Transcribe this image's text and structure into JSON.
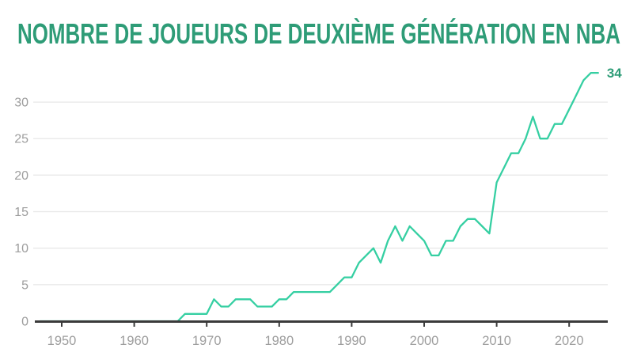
{
  "title": "NOMBRE DE JOUEURS DE DEUXIÈME GÉNÉRATION EN NBA",
  "palette": {
    "title_color": "#2e9c77",
    "line_color": "#35cfa2",
    "end_label_color": "#2e9c77",
    "axis_text_color": "#9d9d9d",
    "grid_color": "#e9e9e9",
    "axis_line_color": "#3a3a3a",
    "background": "#ffffff"
  },
  "chart_data": {
    "type": "line",
    "title": "NOMBRE DE JOUEURS DE DEUXIÈME GÉNÉRATION EN NBA",
    "xlabel": "",
    "ylabel": "",
    "legend": "none",
    "grid": "horizontal-only",
    "xlim": [
      1946,
      2026
    ],
    "ylim": [
      0,
      35
    ],
    "x_ticks": [
      1950,
      1960,
      1970,
      1980,
      1990,
      2000,
      2010,
      2020
    ],
    "y_ticks": [
      0,
      5,
      10,
      15,
      20,
      25,
      30
    ],
    "end_label": "34",
    "x": [
      1947,
      1948,
      1949,
      1950,
      1951,
      1952,
      1953,
      1954,
      1955,
      1956,
      1957,
      1958,
      1959,
      1960,
      1961,
      1962,
      1963,
      1964,
      1965,
      1966,
      1967,
      1968,
      1969,
      1970,
      1971,
      1972,
      1973,
      1974,
      1975,
      1976,
      1977,
      1978,
      1979,
      1980,
      1981,
      1982,
      1983,
      1984,
      1985,
      1986,
      1987,
      1988,
      1989,
      1990,
      1991,
      1992,
      1993,
      1994,
      1995,
      1996,
      1997,
      1998,
      1999,
      2000,
      2001,
      2002,
      2003,
      2004,
      2005,
      2006,
      2007,
      2008,
      2009,
      2010,
      2011,
      2012,
      2013,
      2014,
      2015,
      2016,
      2017,
      2018,
      2019,
      2020,
      2021,
      2022,
      2023,
      2024
    ],
    "values": [
      0,
      0,
      0,
      0,
      0,
      0,
      0,
      0,
      0,
      0,
      0,
      0,
      0,
      0,
      0,
      0,
      0,
      0,
      0,
      0,
      1,
      1,
      1,
      1,
      3,
      2,
      2,
      3,
      3,
      3,
      2,
      2,
      2,
      3,
      3,
      4,
      4,
      4,
      4,
      4,
      4,
      5,
      6,
      6,
      8,
      9,
      10,
      8,
      11,
      13,
      11,
      13,
      12,
      11,
      9,
      9,
      11,
      11,
      13,
      14,
      14,
      13,
      12,
      19,
      21,
      23,
      23,
      25,
      28,
      25,
      25,
      27,
      27,
      29,
      31,
      33,
      34,
      34
    ]
  }
}
